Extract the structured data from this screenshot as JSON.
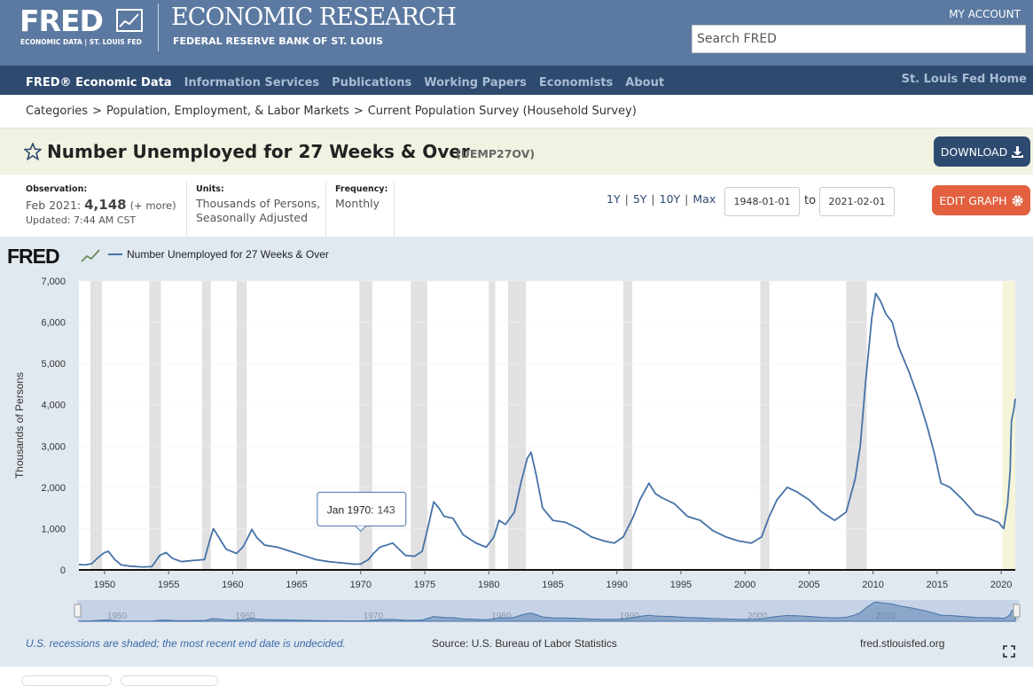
{
  "header": {
    "logo": "FRED",
    "logo_sub": "ECONOMIC DATA | ST. LOUIS FED",
    "org": "ECONOMIC RESEARCH",
    "org_sub": "FEDERAL RESERVE BANK OF ST. LOUIS",
    "account": "MY ACCOUNT",
    "search_placeholder": "Search FRED"
  },
  "nav": {
    "items": [
      "FRED® Economic Data",
      "Information Services",
      "Publications",
      "Working Papers",
      "Economists",
      "About"
    ],
    "home": "St. Louis Fed Home"
  },
  "breadcrumb": {
    "items": [
      "Categories",
      "Population, Employment, & Labor Markets",
      "Current Population Survey (Household Survey)"
    ],
    "separator": ">"
  },
  "series_title": {
    "title": "Number Unemployed for 27 Weeks & Over",
    "id": "(UEMP27OV)",
    "download": "DOWNLOAD"
  },
  "meta": {
    "observation_label": "Observation:",
    "observation_date": "Feb 2021:",
    "observation_value": "4,148",
    "more": "(+ more)",
    "updated": "Updated: 7:44 AM CST",
    "units_label": "Units:",
    "units": "Thousands of Persons, Seasonally Adjusted",
    "frequency_label": "Frequency:",
    "frequency": "Monthly",
    "ranges": [
      "1Y",
      "5Y",
      "10Y",
      "Max"
    ],
    "range_separator": "|",
    "start_date": "1948-01-01",
    "to": "to",
    "end_date": "2021-02-01",
    "edit": "EDIT GRAPH"
  },
  "chart_data": {
    "type": "line",
    "logo": "FRED",
    "y_label": "Thousands of Persons",
    "x": [
      1948.0,
      1948.5,
      1949.0,
      1949.5,
      1950.0,
      1950.3,
      1950.8,
      1951.3,
      1952.0,
      1953.0,
      1953.7,
      1954.3,
      1954.8,
      1955.3,
      1956.0,
      1957.0,
      1957.8,
      1958.2,
      1958.5,
      1958.9,
      1959.5,
      1960.3,
      1960.8,
      1961.3,
      1961.5,
      1961.9,
      1962.5,
      1963.5,
      1964.5,
      1965.5,
      1966.5,
      1967.5,
      1968.5,
      1969.5,
      1970.0,
      1970.6,
      1971.0,
      1971.5,
      1972.0,
      1972.5,
      1973.0,
      1973.5,
      1974.2,
      1974.8,
      1975.3,
      1975.7,
      1976.1,
      1976.5,
      1977.2,
      1978.0,
      1979.0,
      1979.8,
      1980.4,
      1980.8,
      1981.3,
      1982.0,
      1982.5,
      1983.0,
      1983.3,
      1983.7,
      1984.2,
      1985.0,
      1986.0,
      1987.0,
      1988.0,
      1989.0,
      1989.8,
      1990.5,
      1991.3,
      1991.8,
      1992.5,
      1993.0,
      1993.5,
      1994.5,
      1995.5,
      1996.5,
      1997.5,
      1998.5,
      1999.5,
      2000.5,
      2001.3,
      2001.9,
      2002.5,
      2003.3,
      2004.0,
      2005.0,
      2006.0,
      2007.0,
      2007.9,
      2008.6,
      2009.0,
      2009.4,
      2009.9,
      2010.2,
      2010.6,
      2011.0,
      2011.5,
      2012.0,
      2012.8,
      2013.5,
      2014.2,
      2014.8,
      2015.3,
      2016.0,
      2017.0,
      2018.0,
      2019.0,
      2019.8,
      2020.2,
      2020.5,
      2020.7,
      2020.8,
      2021.0,
      2021.1
    ],
    "series": [
      {
        "name": "Number Unemployed for 27 Weeks & Over",
        "color": "#4572a7",
        "values": [
          130,
          120,
          150,
          300,
          420,
          450,
          250,
          120,
          90,
          70,
          80,
          350,
          420,
          280,
          200,
          230,
          250,
          700,
          1000,
          800,
          500,
          400,
          550,
          850,
          980,
          780,
          600,
          550,
          450,
          350,
          250,
          200,
          170,
          140,
          143,
          250,
          400,
          550,
          600,
          650,
          500,
          350,
          330,
          450,
          1100,
          1650,
          1500,
          1300,
          1250,
          850,
          650,
          550,
          800,
          1200,
          1100,
          1400,
          2100,
          2700,
          2850,
          2300,
          1500,
          1200,
          1150,
          1000,
          800,
          700,
          650,
          800,
          1300,
          1700,
          2100,
          1850,
          1750,
          1600,
          1300,
          1200,
          950,
          800,
          700,
          650,
          800,
          1300,
          1700,
          2000,
          1900,
          1700,
          1400,
          1200,
          1400,
          2200,
          3000,
          4500,
          6100,
          6700,
          6500,
          6200,
          6000,
          5400,
          4800,
          4200,
          3500,
          2800,
          2100,
          2000,
          1700,
          1350,
          1250,
          1150,
          1000,
          1600,
          2400,
          3600,
          3900,
          4148
        ]
      }
    ],
    "xlim": [
      1948.0,
      2021.1
    ],
    "xticks": [
      1950,
      1955,
      1960,
      1965,
      1970,
      1975,
      1980,
      1985,
      1990,
      1995,
      2000,
      2005,
      2010,
      2015,
      2020
    ],
    "ylim": [
      0,
      7000
    ],
    "yticks": [
      0,
      {
        "value": 1000,
        "label": "1,000"
      },
      {
        "value": 2000,
        "label": "2,000"
      },
      {
        "value": 3000,
        "label": "3,000"
      },
      {
        "value": 4000,
        "label": "4,000"
      },
      {
        "value": 5000,
        "label": "5,000"
      },
      {
        "value": 6000,
        "label": "6,000"
      },
      {
        "value": 7000,
        "label": "7,000"
      }
    ],
    "grid": true,
    "recessions": [
      [
        1948.9,
        1949.8
      ],
      [
        1953.5,
        1954.4
      ],
      [
        1957.6,
        1958.3
      ],
      [
        1960.3,
        1961.1
      ],
      [
        1969.9,
        1970.9
      ],
      [
        1973.9,
        1975.2
      ],
      [
        1980.0,
        1980.5
      ],
      [
        1981.5,
        1982.9
      ],
      [
        1990.5,
        1991.2
      ],
      [
        2001.2,
        2001.9
      ],
      [
        2007.9,
        2009.5
      ]
    ],
    "undecided_recession_start": 2020.1,
    "tooltip": {
      "label": "Jan 1970:",
      "x": 1970.0,
      "value": 143
    },
    "note": "U.S. recessions are shaded; the most recent end date is undecided.",
    "source": "Source: U.S. Bureau of Labor Statistics",
    "url": "fred.stlouisfed.org"
  }
}
